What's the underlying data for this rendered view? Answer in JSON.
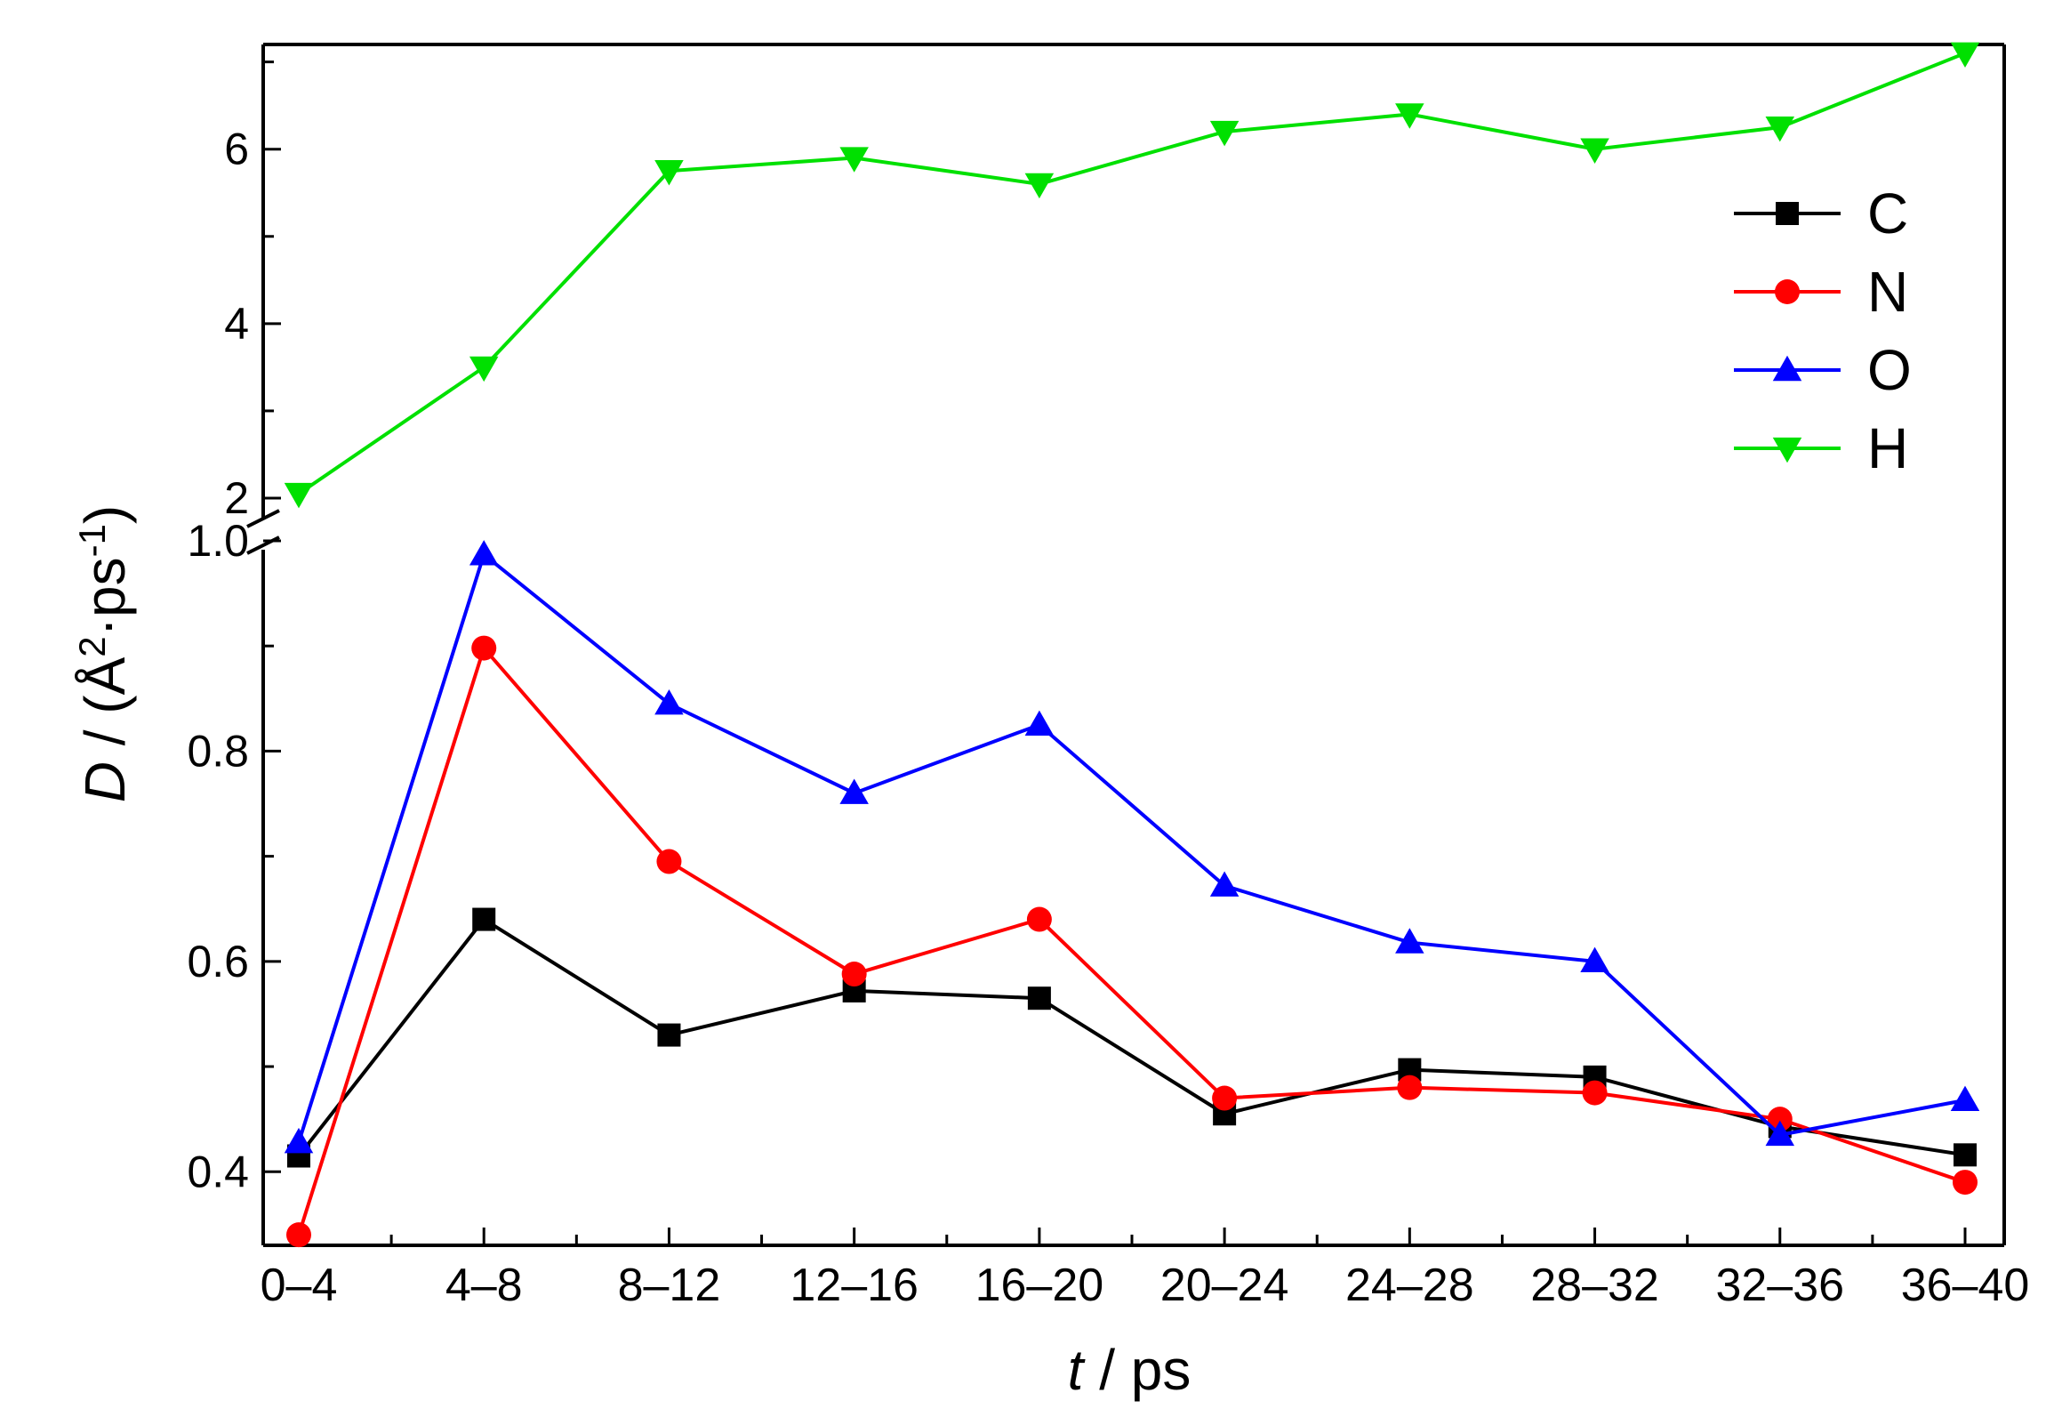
{
  "chart_data": {
    "type": "line",
    "x_title": "ps",
    "x_title_var": "t",
    "y_title_var": "D",
    "y_title_unit": "(Å",
    "y_title_sup1": "2",
    "y_title_mid": "·ps",
    "y_title_sup2": "-1",
    "y_title_close": ")",
    "categories": [
      "0–4",
      "4–8",
      "8–12",
      "12–16",
      "16–20",
      "20–24",
      "24–28",
      "28–32",
      "32–36",
      "36–40"
    ],
    "y_axis_broken": true,
    "lower_segment": {
      "ylim": [
        0.33,
        1.0
      ],
      "ticks": [
        "0.4",
        "0.6",
        "0.8",
        "1.0"
      ]
    },
    "upper_segment": {
      "ylim": [
        2.0,
        7.2
      ],
      "ticks": [
        "2",
        "4",
        "6"
      ]
    },
    "legend_position": "top-right",
    "series": [
      {
        "name": "C",
        "segment": "lower",
        "color": "#000000",
        "marker": "square",
        "values": [
          0.415,
          0.64,
          0.53,
          0.572,
          0.565,
          0.455,
          0.497,
          0.49,
          0.443,
          0.416
        ]
      },
      {
        "name": "N",
        "segment": "lower",
        "color": "#ff0000",
        "marker": "circle",
        "values": [
          0.34,
          0.898,
          0.695,
          0.588,
          0.64,
          0.47,
          0.48,
          0.475,
          0.45,
          0.39
        ]
      },
      {
        "name": "O",
        "segment": "lower",
        "color": "#0000ff",
        "marker": "triangle-up",
        "values": [
          0.428,
          0.987,
          0.845,
          0.76,
          0.825,
          0.672,
          0.618,
          0.6,
          0.435,
          0.468
        ]
      },
      {
        "name": "H",
        "segment": "upper",
        "color": "#00e000",
        "marker": "triangle-down",
        "values": [
          2.05,
          3.5,
          5.75,
          5.9,
          5.6,
          6.2,
          6.4,
          6.0,
          6.25,
          7.1
        ]
      }
    ]
  }
}
